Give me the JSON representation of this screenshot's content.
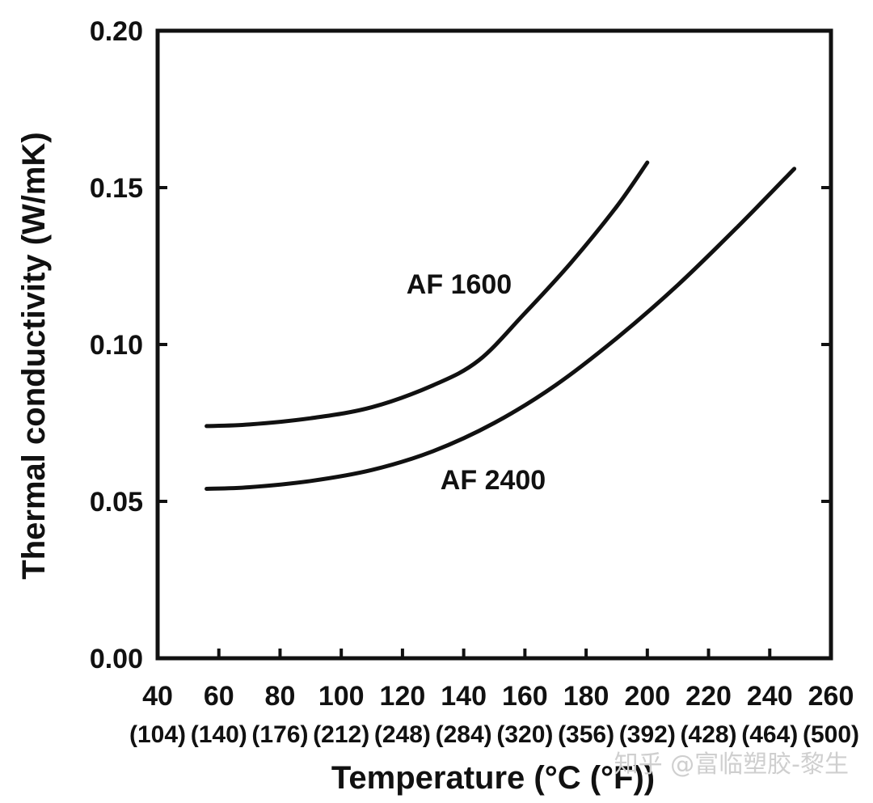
{
  "chart_data": {
    "type": "line",
    "xlabel": "Temperature (°C (°F))",
    "ylabel": "Thermal conductivity (W/mK)",
    "xlim": [
      40,
      260
    ],
    "ylim": [
      0.0,
      0.2
    ],
    "x_ticks": [
      40,
      60,
      80,
      100,
      120,
      140,
      160,
      180,
      200,
      220,
      240,
      260
    ],
    "x_tick_labels": [
      "40",
      "60",
      "80",
      "100",
      "120",
      "140",
      "160",
      "180",
      "200",
      "220",
      "240",
      "260"
    ],
    "x_tick_labels_f": [
      "(104)",
      "(140)",
      "(176)",
      "(212)",
      "(248)",
      "(284)",
      "(320)",
      "(356)",
      "(392)",
      "(428)",
      "(464)",
      "(500)"
    ],
    "y_ticks": [
      0.0,
      0.05,
      0.1,
      0.15,
      0.2
    ],
    "y_tick_labels": [
      "0.00",
      "0.05",
      "0.10",
      "0.15",
      "0.20"
    ],
    "grid": false,
    "series": [
      {
        "name": "AF 1600",
        "x": [
          56,
          70,
          90,
          110,
          130,
          145,
          160,
          175,
          190,
          200
        ],
        "y": [
          0.074,
          0.0745,
          0.0765,
          0.08,
          0.087,
          0.095,
          0.11,
          0.126,
          0.144,
          0.158
        ]
      },
      {
        "name": "AF 2400",
        "x": [
          56,
          70,
          90,
          110,
          130,
          150,
          170,
          190,
          210,
          230,
          248
        ],
        "y": [
          0.054,
          0.0545,
          0.0565,
          0.06,
          0.066,
          0.075,
          0.087,
          0.102,
          0.119,
          0.138,
          0.156
        ]
      }
    ]
  },
  "watermark": "知乎 @富临塑胶-黎生"
}
